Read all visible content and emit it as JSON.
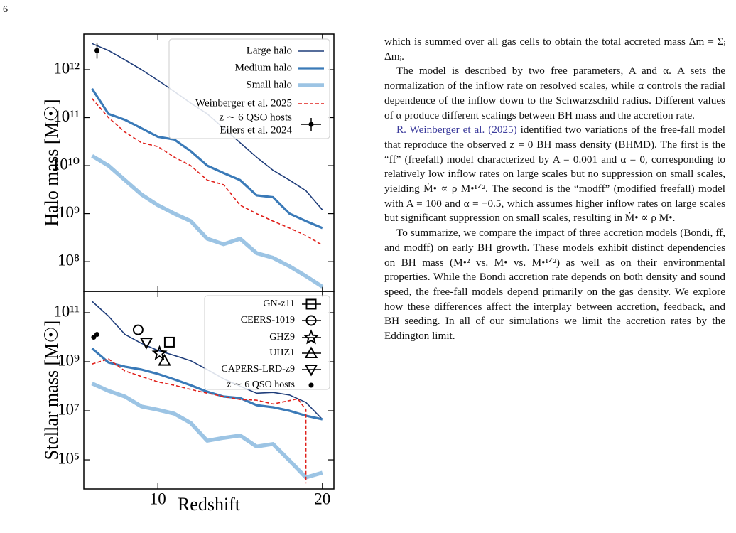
{
  "page_number": "6",
  "chart_data": [
    {
      "type": "line",
      "ylabel": "Halo mass [M☉]",
      "log_y": true,
      "xlim": [
        5.5,
        20.7
      ],
      "ylim": [
        24000000.0,
        5500000000000.0
      ],
      "xticks": [
        10,
        20
      ],
      "yticks": [
        {
          "value": 100000000.0,
          "label": "10⁸"
        },
        {
          "value": 1000000000.0,
          "label": "10⁹"
        },
        {
          "value": 10000000000.0,
          "label": "10¹⁰"
        },
        {
          "value": 100000000000.0,
          "label": "10¹¹"
        },
        {
          "value": 1000000000000.0,
          "label": "10¹²"
        }
      ],
      "x": [
        6,
        7,
        8,
        9,
        10,
        11,
        12,
        13,
        14,
        15,
        16,
        17,
        18,
        19,
        20
      ],
      "series": [
        {
          "name": "Large halo",
          "color": "#1f3d7a",
          "style": "solid",
          "values": [
            3500000000000.0,
            2500000000000.0,
            1600000000000.0,
            1000000000000.0,
            600000000000.0,
            350000000000.0,
            200000000000.0,
            120000000000.0,
            60000000000.0,
            30000000000.0,
            15000000000.0,
            8000000000.0,
            5000000000.0,
            3000000000.0,
            1200000000.0
          ]
        },
        {
          "name": "Medium halo",
          "color": "#3a7ab8",
          "style": "solid",
          "values": [
            400000000000.0,
            120000000000.0,
            90000000000.0,
            60000000000.0,
            40000000000.0,
            35000000000.0,
            20000000000.0,
            10000000000.0,
            7000000000.0,
            5000000000.0,
            2400000000.0,
            2200000000.0,
            1000000000.0,
            700000000.0,
            500000000.0
          ]
        },
        {
          "name": "Small halo",
          "color": "#9cc4e4",
          "style": "solid",
          "values": [
            16000000000.0,
            10000000000.0,
            5000000000.0,
            2500000000.0,
            1500000000.0,
            1000000000.0,
            700000000.0,
            300000000.0,
            230000000.0,
            300000000.0,
            150000000.0,
            120000000.0,
            80000000.0,
            50000000.0,
            30000000.0
          ]
        },
        {
          "name": "Weinberger et al. 2025",
          "color": "#e0201b",
          "style": "dashed",
          "values": [
            250000000000.0,
            100000000000.0,
            50000000000.0,
            30000000000.0,
            25000000000.0,
            15000000000.0,
            10000000000.0,
            5000000000.0,
            4000000000.0,
            1500000000.0,
            1000000000.0,
            700000000.0,
            500000000.0,
            350000000.0,
            220000000.0
          ]
        }
      ],
      "errorbars": [
        {
          "name": "z ∼ 6 QSO hosts",
          "reference": "Eilers et al. 2024",
          "color": "#000000",
          "x": 6.3,
          "value": 2500000000000.0,
          "yerr": [
            800000000000.0,
            1000000000000.0
          ]
        }
      ]
    },
    {
      "type": "line",
      "ylabel": "Stellar mass [M☉]",
      "xlabel": "Redshift",
      "log_y": true,
      "xlim": [
        5.5,
        20.7
      ],
      "ylim": [
        6500.0,
        740000000000.0
      ],
      "xticks": [
        10,
        20
      ],
      "yticks": [
        {
          "value": 100000.0,
          "label": "10⁵"
        },
        {
          "value": 10000000.0,
          "label": "10⁷"
        },
        {
          "value": 1000000000.0,
          "label": "10⁹"
        },
        {
          "value": 100000000000.0,
          "label": "10¹¹"
        }
      ],
      "x": [
        6,
        7,
        8,
        9,
        10,
        11,
        12,
        13,
        14,
        15,
        16,
        17,
        18,
        19,
        20
      ],
      "series": [
        {
          "name": "Large halo",
          "color": "#1f3d7a",
          "style": "solid",
          "values": [
            290000000000.0,
            72000000000.0,
            13000000000.0,
            5600000000.0,
            2900000000.0,
            1800000000.0,
            1100000000.0,
            480000000.0,
            200000000.0,
            100000000.0,
            52000000.0,
            56000000.0,
            44000000.0,
            22000000.0,
            4500000.0
          ]
        },
        {
          "name": "Medium halo",
          "color": "#3a7ab8",
          "style": "solid",
          "values": [
            3500000000.0,
            930000000.0,
            630000000.0,
            480000000.0,
            320000000.0,
            190000000.0,
            110000000.0,
            60000000.0,
            38000000.0,
            33000000.0,
            17000000.0,
            14000000.0,
            10000000.0,
            6300000.0,
            4500000.0
          ]
        },
        {
          "name": "Small halo",
          "color": "#9cc4e4",
          "style": "solid",
          "values": [
            130000000.0,
            65000000.0,
            38000000.0,
            15000000.0,
            11000000.0,
            7600000.0,
            3200000.0,
            600000.0,
            790000.0,
            980000.0,
            350000.0,
            440000.0,
            93000.0,
            19000.0,
            30000.0
          ]
        },
        {
          "name": "Weinberger et al. 2025",
          "color": "#e0201b",
          "style": "dashed",
          "x": [
            6,
            7,
            8,
            9,
            10,
            11,
            12,
            13,
            14,
            15,
            16,
            17,
            18,
            18.5,
            19,
            19
          ],
          "values": [
            810000000.0,
            1300000000.0,
            420000000.0,
            250000000.0,
            150000000.0,
            110000000.0,
            74000000.0,
            52000000.0,
            38000000.0,
            29000000.0,
            27000000.0,
            19000000.0,
            26000000.0,
            31000000.0,
            11000000.0,
            11000.0
          ]
        }
      ],
      "markers": [
        {
          "name": "GN-z11",
          "marker": "square",
          "x": [
            10.7
          ],
          "y": [
            6300000000.0
          ]
        },
        {
          "name": "CEERS-1019",
          "marker": "circle",
          "x": [
            8.8
          ],
          "y": [
            20000000000.0
          ]
        },
        {
          "name": "GHZ9",
          "marker": "star",
          "x": [
            10.1
          ],
          "y": [
            2200000000.0
          ]
        },
        {
          "name": "UHZ1",
          "marker": "triangle",
          "x": [
            10.4
          ],
          "y": [
            1100000000.0
          ]
        },
        {
          "name": "CAPERS-LRD-z9",
          "marker": "triangle-down",
          "x": [
            9.3
          ],
          "y": [
            6000000000.0
          ]
        },
        {
          "name": "z ∼ 6 QSO hosts",
          "marker": "dot",
          "x": [
            6.1,
            6.3
          ],
          "y": [
            10000000000.0,
            13000000000.0
          ]
        }
      ]
    }
  ],
  "text": {
    "paragraphs": [
      "which is summed over all gas cells to obtain the total accreted mass Δm = Σᵢ Δmᵢ.",
      "The model is described by two free parameters, A and α. A sets the normalization of the inflow rate on resolved scales, while α controls the radial dependence of the inflow down to the Schwarzschild radius. Different values of α produce different scalings between BH mass and the accretion rate.",
      " identified two variations of the free-fall model that reproduce the observed z = 0 BH mass density (BHMD). The first is the “ff” (freefall) model characterized by A = 0.001 and α = 0, corresponding to relatively low inflow rates on large scales but no suppression on small scales, yielding Ṁ• ∝ ρ M•¹ᐟ². The second is the “modff” (modified freefall) model with A = 100 and α = −0.5, which assumes higher inflow rates on large scales but significant suppression on small scales, resulting in Ṁ• ∝ ρ M•.",
      "To summarize, we compare the impact of three accretion models (Bondi, ff, and modff) on early BH growth. These models exhibit distinct dependencies on BH mass (M•² vs. M• vs. M•¹ᐟ²) as well as on their environmental properties. While the Bondi accretion rate depends on both density and sound speed, the free-fall models depend primarily on the gas density. We explore how these differences affect the interplay between accretion, feedback, and BH seeding. In all of our simulations we limit the accretion rates by the Eddington limit."
    ],
    "citation": "R. Weinberger et al. (2025)"
  }
}
